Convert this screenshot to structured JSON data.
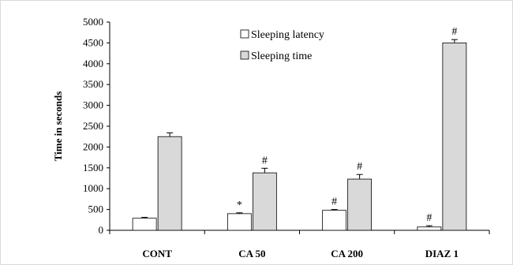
{
  "chart_data": {
    "type": "bar",
    "title": "",
    "xlabel": "",
    "ylabel": "Time in seconds",
    "ylim": [
      0,
      5000
    ],
    "yticks": [
      0,
      500,
      1000,
      1500,
      2000,
      2500,
      3000,
      3500,
      4000,
      4500,
      5000
    ],
    "categories": [
      "CONT",
      "CA 50",
      "CA 200",
      "DIAZ 1"
    ],
    "series": [
      {
        "name": "Sleeping latency",
        "color": "#ffffff",
        "values": [
          290,
          400,
          480,
          80
        ],
        "errors": [
          20,
          20,
          20,
          30
        ],
        "significance": [
          "",
          "*",
          "#",
          "#"
        ]
      },
      {
        "name": "Sleeping time",
        "color": "#d9d9d9",
        "values": [
          2250,
          1380,
          1230,
          4500
        ],
        "errors": [
          90,
          110,
          110,
          80
        ],
        "significance": [
          "",
          "#",
          "#",
          "#"
        ]
      }
    ],
    "legend_position": "top-center",
    "grid": false
  }
}
